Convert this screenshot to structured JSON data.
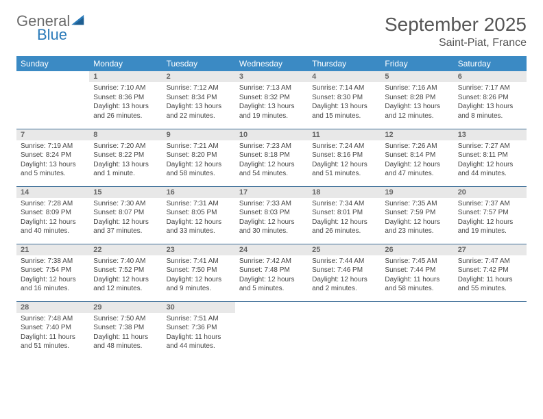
{
  "brand": {
    "word1": "General",
    "word2": "Blue"
  },
  "header": {
    "title": "September 2025",
    "location": "Saint-Piat, France"
  },
  "colors": {
    "header_bg": "#3b8ac4",
    "row_border": "#3b6c96",
    "daynum_bg": "#e8e8e8"
  },
  "weekdays": [
    "Sunday",
    "Monday",
    "Tuesday",
    "Wednesday",
    "Thursday",
    "Friday",
    "Saturday"
  ],
  "grid": {
    "leading_blanks": 1,
    "days": [
      {
        "n": 1,
        "sunrise": "7:10 AM",
        "sunset": "8:36 PM",
        "daylight": "13 hours and 26 minutes."
      },
      {
        "n": 2,
        "sunrise": "7:12 AM",
        "sunset": "8:34 PM",
        "daylight": "13 hours and 22 minutes."
      },
      {
        "n": 3,
        "sunrise": "7:13 AM",
        "sunset": "8:32 PM",
        "daylight": "13 hours and 19 minutes."
      },
      {
        "n": 4,
        "sunrise": "7:14 AM",
        "sunset": "8:30 PM",
        "daylight": "13 hours and 15 minutes."
      },
      {
        "n": 5,
        "sunrise": "7:16 AM",
        "sunset": "8:28 PM",
        "daylight": "13 hours and 12 minutes."
      },
      {
        "n": 6,
        "sunrise": "7:17 AM",
        "sunset": "8:26 PM",
        "daylight": "13 hours and 8 minutes."
      },
      {
        "n": 7,
        "sunrise": "7:19 AM",
        "sunset": "8:24 PM",
        "daylight": "13 hours and 5 minutes."
      },
      {
        "n": 8,
        "sunrise": "7:20 AM",
        "sunset": "8:22 PM",
        "daylight": "13 hours and 1 minute."
      },
      {
        "n": 9,
        "sunrise": "7:21 AM",
        "sunset": "8:20 PM",
        "daylight": "12 hours and 58 minutes."
      },
      {
        "n": 10,
        "sunrise": "7:23 AM",
        "sunset": "8:18 PM",
        "daylight": "12 hours and 54 minutes."
      },
      {
        "n": 11,
        "sunrise": "7:24 AM",
        "sunset": "8:16 PM",
        "daylight": "12 hours and 51 minutes."
      },
      {
        "n": 12,
        "sunrise": "7:26 AM",
        "sunset": "8:14 PM",
        "daylight": "12 hours and 47 minutes."
      },
      {
        "n": 13,
        "sunrise": "7:27 AM",
        "sunset": "8:11 PM",
        "daylight": "12 hours and 44 minutes."
      },
      {
        "n": 14,
        "sunrise": "7:28 AM",
        "sunset": "8:09 PM",
        "daylight": "12 hours and 40 minutes."
      },
      {
        "n": 15,
        "sunrise": "7:30 AM",
        "sunset": "8:07 PM",
        "daylight": "12 hours and 37 minutes."
      },
      {
        "n": 16,
        "sunrise": "7:31 AM",
        "sunset": "8:05 PM",
        "daylight": "12 hours and 33 minutes."
      },
      {
        "n": 17,
        "sunrise": "7:33 AM",
        "sunset": "8:03 PM",
        "daylight": "12 hours and 30 minutes."
      },
      {
        "n": 18,
        "sunrise": "7:34 AM",
        "sunset": "8:01 PM",
        "daylight": "12 hours and 26 minutes."
      },
      {
        "n": 19,
        "sunrise": "7:35 AM",
        "sunset": "7:59 PM",
        "daylight": "12 hours and 23 minutes."
      },
      {
        "n": 20,
        "sunrise": "7:37 AM",
        "sunset": "7:57 PM",
        "daylight": "12 hours and 19 minutes."
      },
      {
        "n": 21,
        "sunrise": "7:38 AM",
        "sunset": "7:54 PM",
        "daylight": "12 hours and 16 minutes."
      },
      {
        "n": 22,
        "sunrise": "7:40 AM",
        "sunset": "7:52 PM",
        "daylight": "12 hours and 12 minutes."
      },
      {
        "n": 23,
        "sunrise": "7:41 AM",
        "sunset": "7:50 PM",
        "daylight": "12 hours and 9 minutes."
      },
      {
        "n": 24,
        "sunrise": "7:42 AM",
        "sunset": "7:48 PM",
        "daylight": "12 hours and 5 minutes."
      },
      {
        "n": 25,
        "sunrise": "7:44 AM",
        "sunset": "7:46 PM",
        "daylight": "12 hours and 2 minutes."
      },
      {
        "n": 26,
        "sunrise": "7:45 AM",
        "sunset": "7:44 PM",
        "daylight": "11 hours and 58 minutes."
      },
      {
        "n": 27,
        "sunrise": "7:47 AM",
        "sunset": "7:42 PM",
        "daylight": "11 hours and 55 minutes."
      },
      {
        "n": 28,
        "sunrise": "7:48 AM",
        "sunset": "7:40 PM",
        "daylight": "11 hours and 51 minutes."
      },
      {
        "n": 29,
        "sunrise": "7:50 AM",
        "sunset": "7:38 PM",
        "daylight": "11 hours and 48 minutes."
      },
      {
        "n": 30,
        "sunrise": "7:51 AM",
        "sunset": "7:36 PM",
        "daylight": "11 hours and 44 minutes."
      }
    ]
  },
  "labels": {
    "sunrise": "Sunrise:",
    "sunset": "Sunset:",
    "daylight": "Daylight:"
  }
}
